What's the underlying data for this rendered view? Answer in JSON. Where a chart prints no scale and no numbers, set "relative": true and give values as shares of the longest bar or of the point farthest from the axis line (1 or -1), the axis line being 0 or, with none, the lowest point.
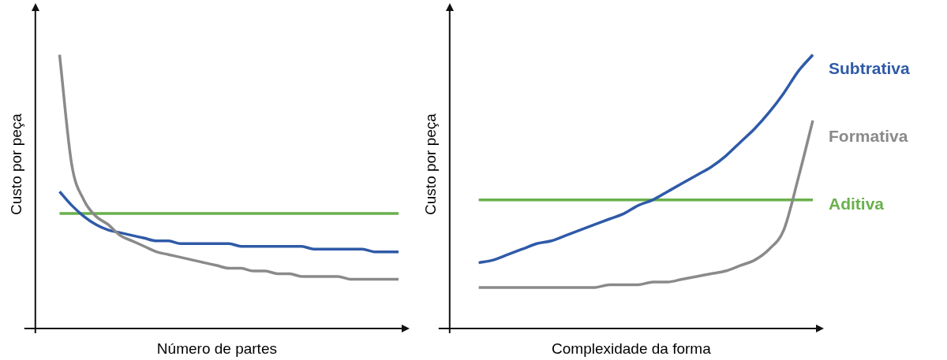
{
  "chart_data": [
    {
      "type": "line",
      "relative": true,
      "xlabel": "Número de partes",
      "ylabel": "Custo por peça",
      "legend": false,
      "grid": false,
      "marker": "none",
      "categories": [
        null,
        null,
        null,
        null,
        null,
        null,
        null,
        null,
        null,
        null,
        null,
        null,
        null,
        null,
        null,
        null,
        null,
        null,
        null,
        null,
        null,
        null,
        null,
        null,
        null,
        null,
        null,
        null,
        null,
        null,
        null
      ],
      "series": [
        {
          "color": "#8a8a8a",
          "values": [
            null,
            null,
            1.0,
            0.6,
            0.47,
            0.41,
            0.38,
            0.34,
            0.32,
            0.3,
            0.28,
            0.27,
            0.26,
            0.25,
            0.24,
            0.23,
            0.22,
            0.22,
            0.21,
            0.21,
            0.2,
            0.2,
            0.19,
            0.19,
            0.19,
            0.19,
            0.18,
            0.18,
            0.18,
            0.18,
            0.18
          ]
        },
        {
          "color": "#2f5aa8",
          "values": [
            null,
            null,
            0.5,
            0.45,
            0.41,
            0.38,
            0.36,
            0.35,
            0.34,
            0.33,
            0.32,
            0.32,
            0.31,
            0.31,
            0.31,
            0.31,
            0.31,
            0.3,
            0.3,
            0.3,
            0.3,
            0.3,
            0.3,
            0.29,
            0.29,
            0.29,
            0.29,
            0.29,
            0.28,
            0.28,
            0.28
          ]
        },
        {
          "color": "#6ab04c",
          "values": [
            null,
            null,
            0.42,
            0.42,
            0.42,
            0.42,
            0.42,
            0.42,
            0.42,
            0.42,
            0.42,
            0.42,
            0.42,
            0.42,
            0.42,
            0.42,
            0.42,
            0.42,
            0.42,
            0.42,
            0.42,
            0.42,
            0.42,
            0.42,
            0.42,
            0.42,
            0.42,
            0.42,
            0.42,
            0.42,
            0.42
          ]
        }
      ]
    },
    {
      "type": "line",
      "relative": true,
      "xlabel": "Complexidade da forma",
      "ylabel": "Custo por peça",
      "legend": "right",
      "grid": false,
      "marker": "none",
      "categories": [
        null,
        null,
        null,
        null,
        null,
        null,
        null,
        null,
        null,
        null,
        null,
        null,
        null,
        null,
        null,
        null,
        null,
        null,
        null,
        null,
        null,
        null,
        null,
        null,
        null,
        null
      ],
      "series": [
        {
          "name": "Subtrativa",
          "color": "#2f5aa8",
          "values": [
            null,
            null,
            0.24,
            0.25,
            0.27,
            0.29,
            0.31,
            0.32,
            0.34,
            0.36,
            0.38,
            0.4,
            0.42,
            0.45,
            0.47,
            0.5,
            0.53,
            0.56,
            0.59,
            0.63,
            0.68,
            0.73,
            0.79,
            0.86,
            0.94,
            1.0
          ]
        },
        {
          "name": "Formativa",
          "color": "#8a8a8a",
          "values": [
            null,
            null,
            0.15,
            0.15,
            0.15,
            0.15,
            0.15,
            0.15,
            0.15,
            0.15,
            0.15,
            0.16,
            0.16,
            0.16,
            0.17,
            0.17,
            0.18,
            0.19,
            0.2,
            0.21,
            0.23,
            0.25,
            0.29,
            0.36,
            0.55,
            0.76
          ]
        },
        {
          "name": "Aditiva",
          "color": "#6ab04c",
          "values": [
            null,
            null,
            0.47,
            0.47,
            0.47,
            0.47,
            0.47,
            0.47,
            0.47,
            0.47,
            0.47,
            0.47,
            0.47,
            0.47,
            0.47,
            0.47,
            0.47,
            0.47,
            0.47,
            0.47,
            0.47,
            0.47,
            0.47,
            0.47,
            0.47,
            0.47
          ]
        }
      ]
    }
  ]
}
